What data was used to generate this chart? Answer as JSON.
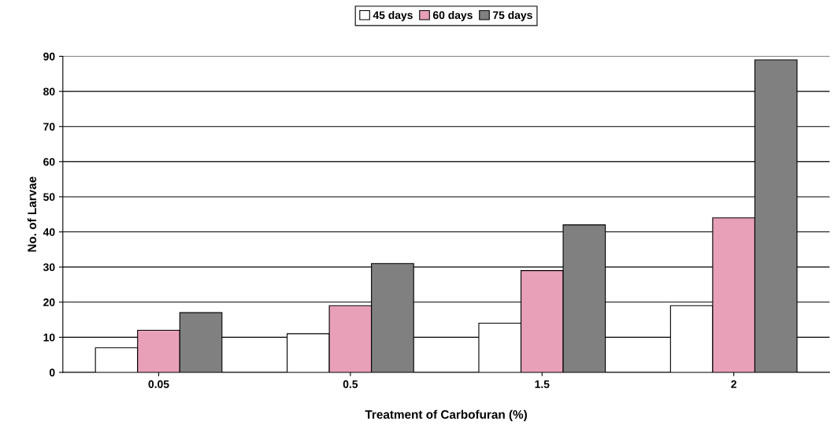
{
  "chart_data": {
    "type": "bar",
    "xlabel": "Treatment of Carbofuran (%)",
    "ylabel": "No. of Larvae",
    "categories": [
      "0.05",
      "0.5",
      "1.5",
      "2"
    ],
    "series": [
      {
        "name": "45 days",
        "color": "#ffffff",
        "values": [
          7,
          11,
          14,
          19
        ]
      },
      {
        "name": "60 days",
        "color": "#e8a0b8",
        "values": [
          12,
          19,
          29,
          44
        ]
      },
      {
        "name": "75 days",
        "color": "#808080",
        "values": [
          17,
          31,
          42,
          89
        ]
      }
    ],
    "ylim": [
      0,
      90
    ],
    "yticks": [
      0,
      10,
      20,
      30,
      40,
      50,
      60,
      70,
      80,
      90
    ],
    "grid": "y",
    "legend": "top"
  }
}
